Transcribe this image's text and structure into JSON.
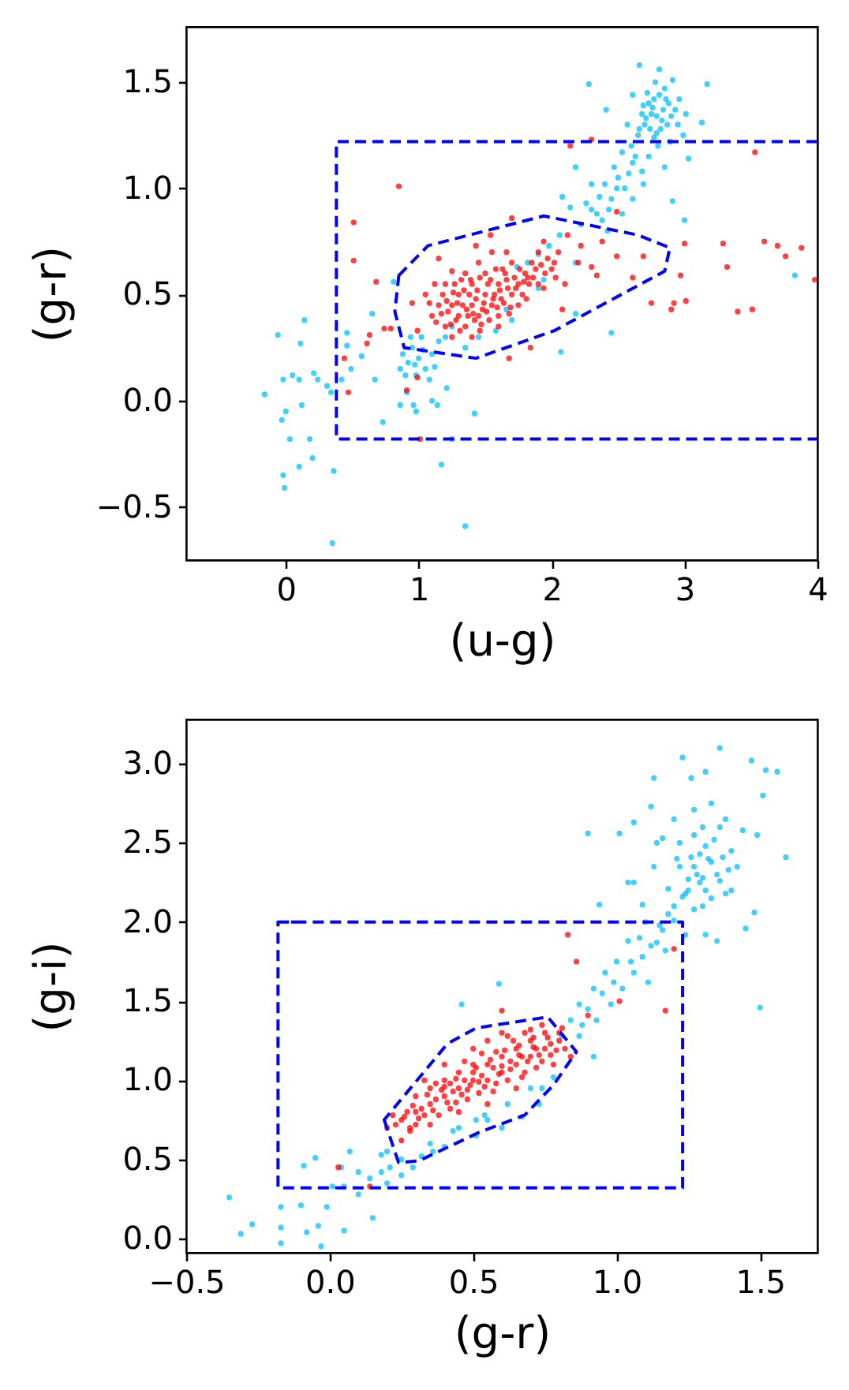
{
  "chart_data": [
    {
      "type": "scatter",
      "xlabel": "(u-g)",
      "ylabel": "(g-r)",
      "marker": "circle",
      "xlim": [
        -0.75,
        4.0
      ],
      "ylim": [
        -0.75,
        1.76
      ],
      "xticks": [
        0,
        1,
        2,
        3,
        4
      ],
      "yticks": [
        {
          "value": -0.5,
          "label": "−0.5"
        },
        {
          "value": 0,
          "label": "0.0"
        },
        0.5,
        {
          "value": 1,
          "label": "1.0"
        },
        1.5
      ],
      "series": [
        {
          "color": "#00bfff",
          "x": [
            -0.06,
            0.11,
            0.14,
            -0.16,
            -0.02,
            0.05,
            0.1,
            0.21,
            0.24,
            0.31,
            0.34,
            0.12,
            0.0,
            -0.03,
            0.03,
            0.18,
            0.2,
            0.1,
            -0.02,
            -0.01,
            0.36,
            0.35,
            1.35,
            1.17,
            0.46,
            0.46,
            0.57,
            0.49,
            0.67,
            0.42,
            0.73,
            0.65,
            0.81,
            0.86,
            0.96,
            0.98,
            1.1,
            1.14,
            1.21,
            1.42,
            1.25,
            0.91,
            0.88,
            0.92,
            0.95,
            1.0,
            1.05,
            0.98,
            0.9,
            1.1,
            1.15,
            1.02,
            0.94,
            1.08,
            0.86,
            1.2,
            1.25,
            0.97,
            1.03,
            1.12,
            1.58,
            1.66,
            1.94,
            1.9,
            1.35,
            1.45,
            1.7,
            2.07,
            2.45,
            2.18,
            2.66,
            2.81,
            2.28,
            3.17,
            2.41,
            3.13,
            2.61,
            2.69,
            2.77,
            2.85,
            2.91,
            2.93,
            3.01,
            2.57,
            2.65,
            2.79,
            2.89,
            2.99,
            3.03,
            2.53,
            2.47,
            2.61,
            2.73,
            2.85,
            2.4,
            2.49,
            2.69,
            2.91,
            2.18,
            2.3,
            2.36,
            2.26,
            2.34,
            2.53,
            2.61,
            2.08,
            2.14,
            2.22,
            2.42,
            3.0,
            2.06,
            1.98,
            2.18,
            1.9,
            1.82,
            1.74,
            3.83,
            2.75,
            2.7,
            2.83,
            2.88,
            2.72,
            2.8,
            2.95,
            2.6,
            2.68,
            2.55,
            2.45,
            2.78,
            2.96,
            2.71,
            2.74,
            2.76,
            2.79,
            2.82,
            2.84,
            2.86,
            2.73,
            2.68,
            2.81,
            2.77,
            2.66,
            2.87,
            2.9,
            2.63,
            2.58,
            2.5,
            2.43,
            2.38,
            2.3
          ],
          "values": [
            0.31,
            0.27,
            0.38,
            0.03,
            0.1,
            0.12,
            0.1,
            0.13,
            0.1,
            0.07,
            0.04,
            -0.02,
            -0.05,
            -0.09,
            -0.18,
            -0.18,
            -0.27,
            -0.31,
            -0.35,
            -0.41,
            -0.33,
            -0.67,
            -0.59,
            -0.3,
            0.32,
            0.26,
            0.21,
            0.15,
            0.1,
            0.1,
            -0.1,
            0.41,
            0.56,
            -0.02,
            -0.02,
            -0.05,
            0.0,
            -0.02,
            0.06,
            -0.06,
            -0.18,
            0.04,
            0.22,
            0.18,
            0.25,
            0.2,
            0.15,
            0.12,
            0.12,
            0.22,
            0.28,
            0.3,
            0.3,
            0.1,
            0.15,
            0.3,
            0.35,
            0.17,
            0.24,
            0.16,
            0.33,
            0.43,
            0.57,
            0.53,
            0.25,
            0.3,
            0.38,
            0.23,
            0.32,
            0.41,
            1.58,
            1.56,
            1.49,
            1.49,
            1.37,
            1.31,
            1.44,
            1.39,
            1.42,
            1.47,
            1.51,
            1.37,
            1.35,
            1.3,
            1.25,
            1.26,
            1.22,
            1.25,
            1.14,
            1.17,
            1.1,
            1.12,
            1.15,
            1.1,
            1.02,
            1.0,
            1.02,
            0.94,
            1.1,
            1.02,
            0.96,
            0.93,
            0.88,
            0.88,
            0.95,
            0.96,
            0.91,
            0.83,
            0.8,
            0.85,
            0.78,
            0.73,
            0.65,
            0.69,
            0.65,
            0.63,
            0.59,
            1.35,
            1.3,
            1.32,
            1.4,
            1.45,
            1.2,
            1.3,
            1.2,
            1.08,
            1.0,
            0.95,
            1.5,
            1.42,
            1.33,
            1.28,
            1.38,
            1.34,
            1.28,
            1.37,
            1.42,
            1.4,
            1.35,
            1.44,
            1.24,
            1.28,
            1.3,
            1.34,
            1.15,
            1.07,
            1.05,
            0.9,
            0.85,
            0.9
          ]
        },
        {
          "color": "#ff0000",
          "x": [
            0.85,
            0.51,
            0.51,
            0.68,
            0.63,
            0.61,
            0.44,
            0.47,
            0.74,
            0.79,
            1.01,
            0.99,
            0.91,
            1.15,
            1.25,
            0.95,
            0.99,
            2.14,
            2.3,
            3.53,
            1.7,
            2.49,
            3.0,
            3.29,
            3.6,
            3.7,
            3.88,
            3.76,
            3.32,
            3.98,
            2.97,
            3.01,
            2.92,
            2.9,
            2.75,
            3.4,
            3.51,
            2.61,
            2.69,
            2.49,
            2.38,
            2.34,
            2.08,
            1.84,
            1.68,
            2.3,
            2.22,
            2.12,
            1.94,
            2.02,
            1.82,
            1.94,
            1.66,
            1.54,
            1.43,
            1.46,
            1.2,
            1.25,
            1.3,
            1.3,
            1.35,
            1.4,
            1.4,
            1.45,
            1.5,
            1.5,
            1.55,
            1.6,
            1.6,
            1.65,
            1.7,
            1.7,
            1.75,
            1.8,
            1.85,
            1.9,
            1.9,
            2.0,
            2.05,
            1.15,
            1.1,
            1.2,
            1.35,
            1.45,
            1.55,
            1.25,
            1.4,
            1.6,
            1.75,
            2.1,
            2.2,
            1.05,
            1.12,
            1.28,
            1.33,
            1.38,
            1.43,
            1.48,
            1.52,
            1.57,
            1.62,
            1.67,
            1.72,
            1.78,
            1.83,
            1.22,
            1.18,
            1.27,
            1.37,
            1.42,
            1.53,
            1.63,
            1.88,
            1.95,
            1.13,
            1.17,
            1.21,
            1.24,
            1.29,
            1.31,
            1.34,
            1.36,
            1.39,
            1.41,
            1.44,
            1.47,
            1.49,
            1.51,
            1.54,
            1.56,
            1.59,
            1.61,
            1.64,
            1.66,
            1.69,
            1.73,
            1.76,
            1.79,
            1.81,
            1.86,
            1.92,
            1.97,
            2.03,
            1.26,
            1.32,
            1.46,
            1.58,
            1.68,
            1.08
          ],
          "values": [
            1.01,
            0.84,
            0.66,
            0.56,
            0.31,
            0.27,
            0.2,
            0.04,
            0.34,
            0.34,
            -0.18,
            0.11,
            0.05,
            0.67,
            0.61,
            0.46,
            0.33,
            1.2,
            1.23,
            1.17,
            0.86,
            0.89,
            0.74,
            0.74,
            0.75,
            0.73,
            0.72,
            0.68,
            0.63,
            0.57,
            0.59,
            0.47,
            0.46,
            0.43,
            0.46,
            0.42,
            0.43,
            0.58,
            0.68,
            0.68,
            0.75,
            0.59,
            0.43,
            0.25,
            0.2,
            0.63,
            0.73,
            0.78,
            0.75,
            0.65,
            0.58,
            0.53,
            0.7,
            0.78,
            0.73,
            0.33,
            0.35,
            0.45,
            0.4,
            0.5,
            0.35,
            0.45,
            0.55,
            0.4,
            0.5,
            0.6,
            0.45,
            0.55,
            0.4,
            0.6,
            0.5,
            0.65,
            0.55,
            0.6,
            0.65,
            0.55,
            0.7,
            0.62,
            0.7,
            0.45,
            0.4,
            0.55,
            0.6,
            0.65,
            0.7,
            0.3,
            0.3,
            0.35,
            0.45,
            0.55,
            0.65,
            0.5,
            0.55,
            0.38,
            0.45,
            0.5,
            0.48,
            0.43,
            0.55,
            0.5,
            0.48,
            0.53,
            0.58,
            0.5,
            0.55,
            0.42,
            0.5,
            0.55,
            0.4,
            0.38,
            0.38,
            0.62,
            0.62,
            0.6,
            0.37,
            0.41,
            0.47,
            0.36,
            0.46,
            0.33,
            0.52,
            0.43,
            0.57,
            0.41,
            0.52,
            0.36,
            0.46,
            0.42,
            0.57,
            0.48,
            0.44,
            0.52,
            0.46,
            0.57,
            0.44,
            0.53,
            0.62,
            0.56,
            0.48,
            0.58,
            0.64,
            0.67,
            0.58,
            0.51,
            0.57,
            0.58,
            0.62,
            0.41,
            0.46
          ]
        },
        {
          "type": "line",
          "color": "#0000ff",
          "line_style": "dashed",
          "marker": "none",
          "x": [
            4.0,
            0.38,
            0.38,
            4.0
          ],
          "values": [
            1.22,
            1.22,
            -0.18,
            -0.18
          ]
        },
        {
          "type": "line",
          "color": "#0000ff",
          "line_style": "dashed",
          "marker": "none",
          "x": [
            0.85,
            1.07,
            1.94,
            2.65,
            2.89,
            2.85,
            2.02,
            1.43,
            0.89,
            0.82,
            0.85,
            0.88
          ],
          "values": [
            0.59,
            0.73,
            0.87,
            0.78,
            0.72,
            0.61,
            0.33,
            0.2,
            0.25,
            0.42,
            0.59,
            0.61
          ]
        }
      ]
    },
    {
      "type": "scatter",
      "xlabel": "(g-r)",
      "ylabel": "(g-i)",
      "marker": "circle",
      "xlim": [
        -0.5,
        1.7
      ],
      "ylim": [
        -0.09,
        3.28
      ],
      "xticks": [
        {
          "value": -0.5,
          "label": "−0.5"
        },
        {
          "value": 0,
          "label": "0.0"
        },
        0.5,
        {
          "value": 1,
          "label": "1.0"
        },
        1.5
      ],
      "yticks": [
        {
          "value": 0,
          "label": "0.0"
        },
        0.5,
        {
          "value": 1,
          "label": "1.0"
        },
        1.5,
        {
          "value": 2,
          "label": "2.0"
        },
        2.5,
        {
          "value": 3,
          "label": "3.0"
        }
      ],
      "series": [
        {
          "color": "#00bfff",
          "x": [
            -0.35,
            -0.31,
            -0.27,
            -0.17,
            -0.17,
            -0.17,
            -0.1,
            -0.09,
            -0.05,
            -0.04,
            -0.03,
            -0.08,
            -0.01,
            0.01,
            0.05,
            0.04,
            0.07,
            0.1,
            0.15,
            0.14,
            0.18,
            0.21,
            0.25,
            0.29,
            0.32,
            0.36,
            0.4,
            0.46,
            0.59,
            0.2,
            0.1,
            0.05,
            0.18,
            0.43,
            0.51,
            0.54,
            0.51,
            0.6,
            0.67,
            0.73,
            0.78,
            0.81,
            0.84,
            0.87,
            0.93,
            0.92,
            0.98,
            1.02,
            1.06,
            1.09,
            1.14,
            1.04,
            1.11,
            1.16,
            1.2,
            1.17,
            1.24,
            1.27,
            1.31,
            1.35,
            1.18,
            1.24,
            1.29,
            1.33,
            1.38,
            1.42,
            1.37,
            1.31,
            1.26,
            1.22,
            1.13,
            1.06,
            1.14,
            1.2,
            1.27,
            1.33,
            1.38,
            1.44,
            1.49,
            1.26,
            1.31,
            1.36,
            1.23,
            1.52,
            1.56,
            1.47,
            1.51,
            1.13,
            1.12,
            1.06,
            1.01,
            0.9,
            1.16,
            1.59,
            1.48,
            1.45,
            1.5,
            0.94,
            1.04,
            1.09,
            0.96,
            0.92,
            0.87,
            0.74,
            0.35,
            0.45,
            0.55,
            0.62,
            0.7,
            0.2,
            0.25,
            1.28,
            1.32,
            1.25,
            1.35,
            1.3,
            1.4,
            1.22,
            1.3,
            1.2,
            1.1,
            1.0,
            0.95,
            0.88,
            1.08,
            1.27,
            1.3,
            1.33,
            1.36,
            1.25,
            1.29,
            1.34,
            1.39,
            1.23,
            1.31,
            1.27,
            1.36,
            1.21,
            1.4,
            1.18,
            1.15,
            1.12,
            1.05,
            0.99,
            0.9
          ],
          "values": [
            0.26,
            0.03,
            0.09,
            -0.03,
            0.07,
            0.2,
            0.21,
            0.46,
            0.51,
            0.08,
            -0.05,
            0.04,
            0.2,
            0.33,
            0.05,
            0.45,
            0.55,
            0.28,
            0.13,
            0.38,
            0.42,
            0.45,
            0.4,
            0.45,
            0.52,
            0.55,
            0.58,
            1.48,
            1.61,
            0.35,
            0.42,
            0.33,
            0.53,
            0.68,
            0.75,
            0.78,
            0.65,
            0.7,
            0.77,
            0.85,
            1.02,
            1.28,
            1.38,
            1.48,
            1.38,
            1.15,
            1.48,
            1.58,
            1.68,
            1.78,
            1.87,
            1.88,
            1.62,
            1.95,
            2.01,
            1.82,
            1.92,
            2.08,
            1.92,
            1.88,
            2.21,
            2.18,
            2.25,
            2.15,
            2.18,
            2.35,
            2.41,
            2.48,
            2.41,
            2.35,
            2.35,
            2.25,
            2.5,
            2.65,
            2.71,
            2.75,
            2.65,
            2.58,
            2.55,
            2.91,
            2.95,
            3.1,
            3.04,
            2.96,
            2.95,
            3.02,
            2.8,
            2.91,
            2.73,
            2.63,
            2.56,
            2.56,
            2.53,
            2.41,
            2.06,
            1.96,
            1.46,
            2.11,
            2.25,
            2.11,
            1.68,
            1.58,
            1.28,
            0.95,
            0.6,
            0.7,
            0.75,
            0.85,
            0.95,
            0.55,
            0.5,
            2.3,
            2.4,
            2.2,
            2.3,
            2.6,
            2.45,
            2.5,
            2.1,
            2.1,
            2.0,
            1.75,
            1.55,
            1.35,
            1.9,
            2.35,
            2.28,
            2.38,
            2.26,
            2.27,
            2.43,
            2.52,
            2.33,
            2.16,
            2.2,
            2.55,
            2.6,
            2.4,
            2.2,
            2.05,
            1.98,
            1.85,
            1.75,
            1.62,
            1.45
          ]
        },
        {
          "color": "#ff0000",
          "x": [
            0.83,
            0.86,
            1.2,
            1.17,
            1.01,
            0.9,
            0.6,
            0.03,
            0.14,
            0.25,
            0.28,
            0.22,
            0.25,
            0.3,
            0.3,
            0.35,
            0.35,
            0.4,
            0.4,
            0.45,
            0.45,
            0.5,
            0.5,
            0.55,
            0.55,
            0.6,
            0.6,
            0.65,
            0.65,
            0.7,
            0.7,
            0.75,
            0.75,
            0.8,
            0.38,
            0.42,
            0.48,
            0.52,
            0.58,
            0.62,
            0.68,
            0.72,
            0.33,
            0.4,
            0.5,
            0.55,
            0.6,
            0.68,
            0.45,
            0.55,
            0.65,
            0.78,
            0.82,
            0.28,
            0.35,
            0.2,
            0.32,
            0.37,
            0.43,
            0.47,
            0.53,
            0.57,
            0.63,
            0.67,
            0.72,
            0.77,
            0.27,
            0.3,
            0.42,
            0.5,
            0.58,
            0.64,
            0.7,
            0.74,
            0.8,
            0.84,
            0.26,
            0.29,
            0.31,
            0.34,
            0.36,
            0.39,
            0.41,
            0.44,
            0.46,
            0.49,
            0.51,
            0.54,
            0.56,
            0.59,
            0.61,
            0.63,
            0.66,
            0.69,
            0.71,
            0.73,
            0.76,
            0.79,
            0.81,
            0.37,
            0.47,
            0.53,
            0.62,
            0.44,
            0.57,
            0.67,
            0.74,
            0.33,
            0.48,
            0.52,
            0.6,
            0.66,
            0.71,
            0.77,
            0.23,
            0.4
          ],
          "values": [
            1.92,
            1.75,
            1.83,
            1.44,
            1.5,
            1.41,
            1.44,
            0.45,
            0.33,
            0.62,
            0.68,
            0.78,
            0.75,
            0.8,
            0.9,
            0.85,
            0.95,
            0.9,
            1.0,
            0.95,
            1.05,
            1.0,
            1.1,
            1.0,
            1.1,
            1.05,
            1.15,
            1.1,
            1.2,
            1.15,
            1.25,
            1.2,
            1.3,
            1.25,
            0.78,
            0.82,
            0.88,
            0.92,
            0.98,
            1.0,
            1.05,
            1.08,
            1.0,
            1.1,
            1.2,
            1.25,
            1.3,
            1.3,
            0.8,
            0.85,
            0.95,
            1.1,
            1.2,
            0.7,
            0.72,
            0.7,
            0.82,
            0.88,
            0.93,
            1.0,
            1.03,
            1.08,
            1.12,
            1.15,
            1.2,
            1.23,
            0.8,
            0.72,
            0.98,
            1.05,
            1.18,
            1.25,
            1.32,
            1.35,
            1.3,
            1.15,
            0.77,
            0.84,
            0.76,
            0.91,
            0.81,
            0.94,
            0.86,
            1.01,
            0.91,
            0.97,
            1.08,
            0.96,
            1.13,
            1.04,
            1.19,
            1.07,
            1.22,
            1.12,
            1.27,
            1.16,
            1.27,
            1.19,
            1.33,
            0.98,
            1.12,
            1.17,
            1.28,
            0.86,
            0.93,
            1.02,
            1.12,
            0.78,
            0.94,
            0.99,
            1.09,
            1.16,
            1.21,
            1.16,
            0.72,
            0.96
          ]
        },
        {
          "type": "line",
          "color": "#0000ff",
          "line_style": "dashed",
          "marker": "none",
          "x": [
            -0.18,
            1.23,
            1.23,
            -0.18,
            -0.18,
            -0.1
          ],
          "values": [
            2.0,
            2.0,
            0.32,
            0.32,
            2.0,
            2.0
          ]
        },
        {
          "type": "line",
          "color": "#0000ff",
          "line_style": "dashed",
          "marker": "none",
          "x": [
            0.19,
            0.24,
            0.31,
            0.52,
            0.68,
            0.78,
            0.86,
            0.76,
            0.51,
            0.41,
            0.19,
            0.2
          ],
          "values": [
            0.75,
            0.48,
            0.49,
            0.67,
            0.78,
            0.97,
            1.18,
            1.4,
            1.33,
            1.23,
            0.75,
            0.71
          ]
        }
      ]
    }
  ]
}
